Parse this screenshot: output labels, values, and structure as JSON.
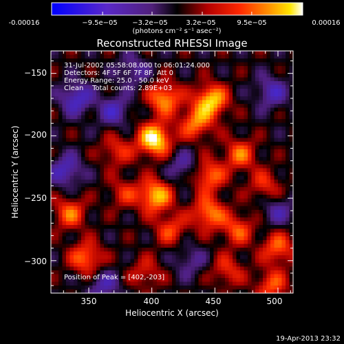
{
  "colorbar": {
    "tick_labels": [
      "-0.00016",
      "−9.5e−05",
      "−3.2e−05",
      "3.2e−05",
      "9.5e−05",
      "0.00016"
    ],
    "units": "(photons cm⁻² s⁻¹ asec⁻²)",
    "range": [
      -0.00016,
      0.00016
    ]
  },
  "chart_data": {
    "type": "heatmap",
    "title": "Reconstructed RHESSI Image",
    "xlabel": "Heliocentric X (arcsec)",
    "ylabel": "Heliocentric Y (arcsec)",
    "xlim": [
      320,
      512
    ],
    "ylim": [
      -326,
      -132
    ],
    "xticks": [
      350,
      400,
      450,
      500
    ],
    "yticks": [
      -150,
      -200,
      -250,
      -300
    ],
    "xtick_labels": [
      "350",
      "400",
      "450",
      "500"
    ],
    "ytick_labels": [
      "−150",
      "−200",
      "−250",
      "−300"
    ],
    "annotations": [
      "31-Jul-2002 05:58:08.000 to 06:01:24.000",
      "Detectors: 4F 5F 6F 7F 8F, Att 0",
      "Energy Range: 25.0 - 50.0 keV",
      "Clean    Total counts: 2.89E+03"
    ],
    "peak_label": "Position of Peak = [402,-203]",
    "peak": [
      402,
      -203
    ],
    "colormap": "rainbow-heat (blue/purple negative → black → red → orange → yellow/white positive)",
    "sources": [
      {
        "x": 402,
        "y": -203,
        "amp": 1.0
      },
      {
        "x": 447,
        "y": -172,
        "amp": 0.85
      },
      {
        "x": 410,
        "y": -170,
        "amp": 0.7
      },
      {
        "x": 435,
        "y": -190,
        "amp": 0.6
      },
      {
        "x": 403,
        "y": -248,
        "amp": 0.8
      },
      {
        "x": 445,
        "y": -232,
        "amp": 0.6
      },
      {
        "x": 470,
        "y": -215,
        "amp": 0.55
      },
      {
        "x": 445,
        "y": -262,
        "amp": 0.65
      },
      {
        "x": 468,
        "y": -275,
        "amp": 0.5
      },
      {
        "x": 415,
        "y": -275,
        "amp": 0.45
      },
      {
        "x": 335,
        "y": -262,
        "amp": 0.55
      },
      {
        "x": 348,
        "y": -298,
        "amp": 0.6
      },
      {
        "x": 372,
        "y": -212,
        "amp": 0.4
      },
      {
        "x": 378,
        "y": -246,
        "amp": 0.35
      },
      {
        "x": 500,
        "y": -290,
        "amp": 0.55
      },
      {
        "x": 495,
        "y": -320,
        "amp": 0.5
      },
      {
        "x": 490,
        "y": -240,
        "amp": 0.4
      },
      {
        "x": 460,
        "y": -308,
        "amp": 0.4
      },
      {
        "x": 395,
        "y": -310,
        "amp": 0.35
      },
      {
        "x": 340,
        "y": -170,
        "amp": -0.55
      },
      {
        "x": 332,
        "y": -228,
        "amp": -0.5
      },
      {
        "x": 370,
        "y": -180,
        "amp": -0.45
      },
      {
        "x": 362,
        "y": -320,
        "amp": -0.4
      },
      {
        "x": 495,
        "y": -165,
        "amp": -0.45
      },
      {
        "x": 425,
        "y": -225,
        "amp": -0.35
      },
      {
        "x": 500,
        "y": -260,
        "amp": -0.35
      },
      {
        "x": 430,
        "y": -300,
        "amp": -0.3
      },
      {
        "x": 385,
        "y": -148,
        "amp": -0.35
      }
    ]
  },
  "footer": {
    "timestamp": "19-Apr-2013 23:32"
  }
}
